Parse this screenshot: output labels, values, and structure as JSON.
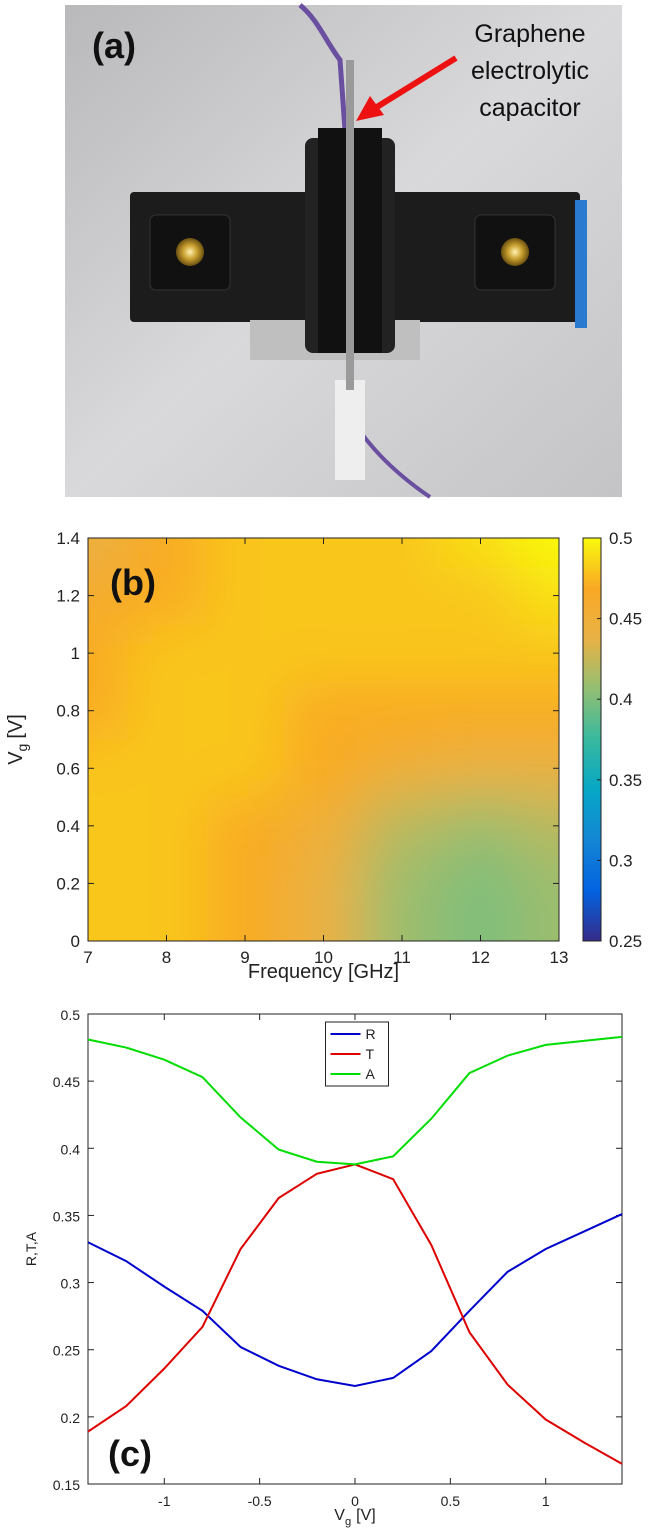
{
  "photo": {
    "label": "(a)",
    "annotation": [
      "Graphene",
      "electrolytic",
      "capacitor"
    ]
  },
  "chart_data": [
    {
      "type": "heatmap",
      "label": "(b)",
      "xlabel": "Frequency [GHz]",
      "ylabel": [
        "V",
        "g",
        "[V]"
      ],
      "x": [
        7,
        8,
        9,
        10,
        11,
        12,
        13
      ],
      "y": [
        0,
        0.2,
        0.4,
        0.6,
        0.8,
        1.0,
        1.2,
        1.4
      ],
      "z": [
        [
          0.48,
          0.48,
          0.47,
          0.44,
          0.41,
          0.4,
          0.41
        ],
        [
          0.48,
          0.48,
          0.47,
          0.44,
          0.41,
          0.4,
          0.41
        ],
        [
          0.48,
          0.48,
          0.47,
          0.45,
          0.42,
          0.41,
          0.42
        ],
        [
          0.48,
          0.48,
          0.48,
          0.47,
          0.45,
          0.44,
          0.44
        ],
        [
          0.47,
          0.48,
          0.48,
          0.47,
          0.47,
          0.47,
          0.47
        ],
        [
          0.47,
          0.48,
          0.48,
          0.48,
          0.48,
          0.48,
          0.48
        ],
        [
          0.46,
          0.47,
          0.48,
          0.48,
          0.48,
          0.48,
          0.49
        ],
        [
          0.44,
          0.47,
          0.48,
          0.48,
          0.48,
          0.49,
          0.5
        ]
      ],
      "xlim": [
        7,
        13
      ],
      "xticks": [
        7,
        8,
        9,
        10,
        11,
        12,
        13
      ],
      "ylim": [
        0,
        1.4
      ],
      "yticks": [
        0,
        0.2,
        0.4,
        0.6,
        0.8,
        1,
        1.2,
        1.4
      ],
      "clim": [
        0.25,
        0.5
      ],
      "cticks": [
        0.25,
        0.3,
        0.35,
        0.4,
        0.45,
        0.5
      ],
      "colormap": [
        "#352a87",
        "#0363e1",
        "#1485d4",
        "#06a7c6",
        "#38b99e",
        "#92bf73",
        "#e8b245",
        "#f9a825",
        "#f9fb0e"
      ]
    },
    {
      "type": "line",
      "label": "(c)",
      "xlabel": [
        "V",
        "g",
        "[V]"
      ],
      "ylabel": "R,T,A",
      "x": [
        -1.4,
        -1.2,
        -1.0,
        -0.8,
        -0.6,
        -0.4,
        -0.2,
        0,
        0.2,
        0.4,
        0.6,
        0.8,
        1.0,
        1.2,
        1.4
      ],
      "series": [
        {
          "name": "R",
          "color": "#0000cc",
          "values": [
            0.33,
            0.316,
            0.297,
            0.279,
            0.252,
            0.238,
            0.228,
            0.223,
            0.229,
            0.249,
            0.279,
            0.308,
            0.325,
            0.338,
            0.351
          ]
        },
        {
          "name": "T",
          "color": "#dd0000",
          "values": [
            0.189,
            0.208,
            0.236,
            0.267,
            0.325,
            0.363,
            0.381,
            0.388,
            0.377,
            0.328,
            0.263,
            0.224,
            0.198,
            0.181,
            0.165
          ]
        },
        {
          "name": "A",
          "color": "#00dd00",
          "values": [
            0.481,
            0.475,
            0.466,
            0.453,
            0.423,
            0.399,
            0.39,
            0.388,
            0.394,
            0.422,
            0.456,
            0.469,
            0.477,
            0.48,
            0.483
          ]
        }
      ],
      "xlim": [
        -1.4,
        1.4
      ],
      "xticks": [
        -1,
        -0.5,
        0,
        0.5,
        1
      ],
      "ylim": [
        0.15,
        0.5
      ],
      "yticks": [
        0.15,
        0.2,
        0.25,
        0.3,
        0.35,
        0.4,
        0.45,
        0.5
      ],
      "legend": "upper center"
    }
  ]
}
